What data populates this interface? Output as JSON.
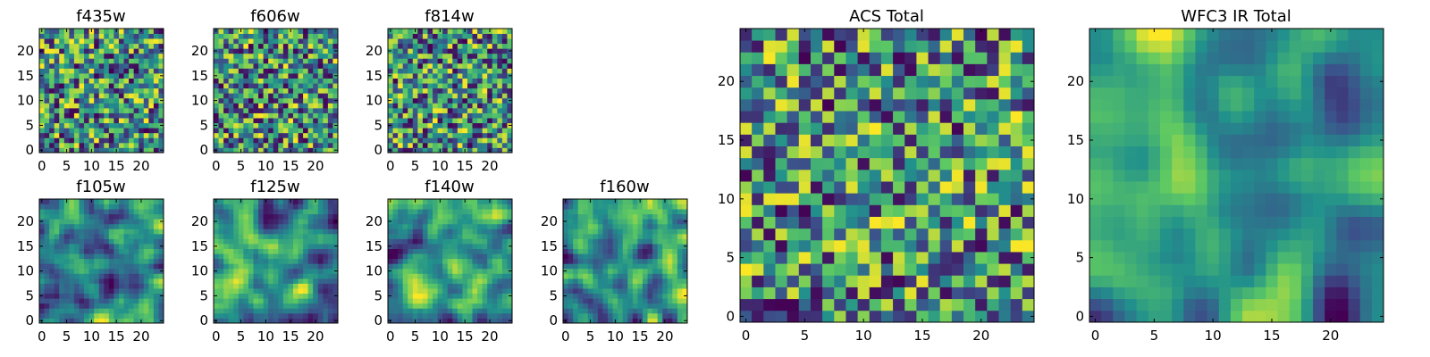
{
  "chart_data": {
    "type": "heatmap",
    "colormap": [
      "#440154",
      "#3b528b",
      "#21918c",
      "#5ec962",
      "#fde725"
    ],
    "panels": [
      {
        "key": "f435w",
        "title": "f435w",
        "grid_size": 25,
        "seed": 11,
        "smooth": 0,
        "xticks": [
          0,
          5,
          10,
          15,
          20
        ],
        "yticks": [
          0,
          5,
          10,
          15,
          20
        ],
        "xlim": [
          -0.5,
          24.5
        ],
        "ylim": [
          -0.5,
          24.5
        ]
      },
      {
        "key": "f606w",
        "title": "f606w",
        "grid_size": 25,
        "seed": 23,
        "smooth": 0,
        "xticks": [
          0,
          5,
          10,
          15,
          20
        ],
        "yticks": [
          0,
          5,
          10,
          15,
          20
        ],
        "xlim": [
          -0.5,
          24.5
        ],
        "ylim": [
          -0.5,
          24.5
        ]
      },
      {
        "key": "f814w",
        "title": "f814w",
        "grid_size": 25,
        "seed": 37,
        "smooth": 0,
        "xticks": [
          0,
          5,
          10,
          15,
          20
        ],
        "yticks": [
          0,
          5,
          10,
          15,
          20
        ],
        "xlim": [
          -0.5,
          24.5
        ],
        "ylim": [
          -0.5,
          24.5
        ]
      },
      {
        "key": "f105w",
        "title": "f105w",
        "grid_size": 25,
        "seed": 41,
        "smooth": 2,
        "xticks": [
          0,
          5,
          10,
          15,
          20
        ],
        "yticks": [
          0,
          5,
          10,
          15,
          20
        ],
        "xlim": [
          -0.5,
          24.5
        ],
        "ylim": [
          -0.5,
          24.5
        ]
      },
      {
        "key": "f125w",
        "title": "f125w",
        "grid_size": 25,
        "seed": 53,
        "smooth": 2,
        "xticks": [
          0,
          5,
          10,
          15,
          20
        ],
        "yticks": [
          0,
          5,
          10,
          15,
          20
        ],
        "xlim": [
          -0.5,
          24.5
        ],
        "ylim": [
          -0.5,
          24.5
        ]
      },
      {
        "key": "f140w",
        "title": "f140w",
        "grid_size": 25,
        "seed": 67,
        "smooth": 2,
        "xticks": [
          0,
          5,
          10,
          15,
          20
        ],
        "yticks": [
          0,
          5,
          10,
          15,
          20
        ],
        "xlim": [
          -0.5,
          24.5
        ],
        "ylim": [
          -0.5,
          24.5
        ]
      },
      {
        "key": "f160w",
        "title": "f160w",
        "grid_size": 25,
        "seed": 79,
        "smooth": 2,
        "xticks": [
          0,
          5,
          10,
          15,
          20
        ],
        "yticks": [
          0,
          5,
          10,
          15,
          20
        ],
        "xlim": [
          -0.5,
          24.5
        ],
        "ylim": [
          -0.5,
          24.5
        ]
      },
      {
        "key": "acs_total",
        "title": "ACS Total",
        "grid_size": 25,
        "seed": 97,
        "smooth": 0,
        "xticks": [
          0,
          5,
          10,
          15,
          20
        ],
        "yticks": [
          0,
          5,
          10,
          15,
          20
        ],
        "xlim": [
          -0.5,
          24.5
        ],
        "ylim": [
          -0.5,
          24.5
        ]
      },
      {
        "key": "wfc3_ir_total",
        "title": "WFC3 IR Total",
        "grid_size": 25,
        "seed": 131,
        "smooth": 3,
        "xticks": [
          0,
          5,
          10,
          15,
          20
        ],
        "yticks": [
          0,
          5,
          10,
          15,
          20
        ],
        "xlim": [
          -0.5,
          24.5
        ],
        "ylim": [
          -0.5,
          24.5
        ]
      }
    ]
  }
}
